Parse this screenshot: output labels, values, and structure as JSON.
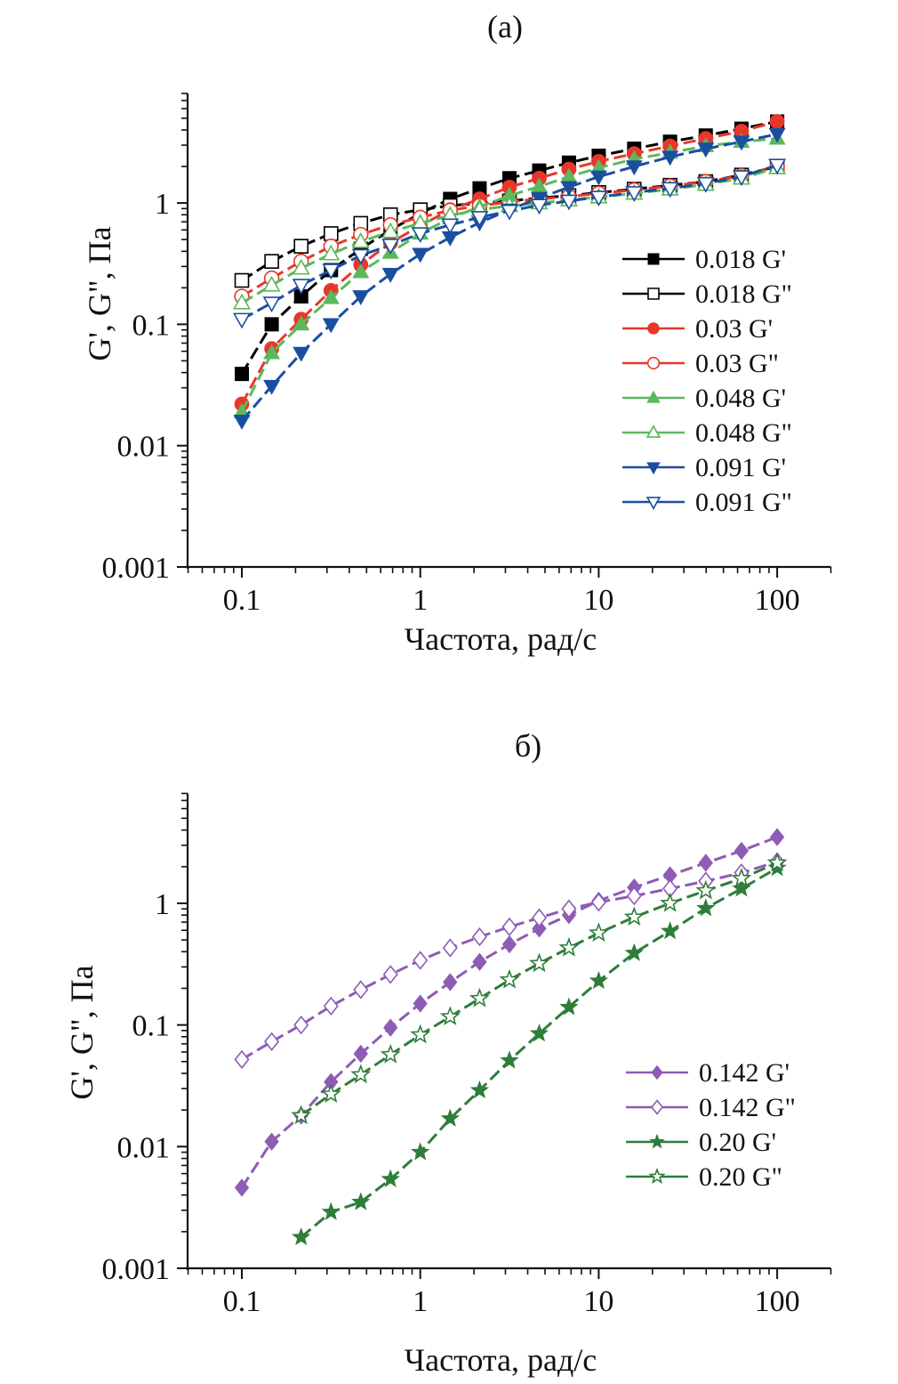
{
  "chart_data": [
    {
      "type": "line",
      "title": "(a)",
      "xlabel": "Частота, рад/с",
      "ylabel": "G', G\", Па",
      "xscale": "log",
      "yscale": "log",
      "xlim": [
        0.05,
        200
      ],
      "ylim": [
        0.001,
        8
      ],
      "xticks": [
        {
          "v": 0.1,
          "label": "0.1"
        },
        {
          "v": 1,
          "label": "1"
        },
        {
          "v": 10,
          "label": "10"
        },
        {
          "v": 100,
          "label": "100"
        }
      ],
      "yticks": [
        {
          "v": 0.001,
          "label": "0.001"
        },
        {
          "v": 0.01,
          "label": "0.01"
        },
        {
          "v": 0.1,
          "label": "0.1"
        },
        {
          "v": 1,
          "label": "1"
        }
      ],
      "grid": false,
      "legend_position": "right",
      "series": [
        {
          "name": "0.018 G'",
          "color": "#000000",
          "marker": "square",
          "filled": true,
          "x": [
            0.1,
            0.147,
            0.215,
            0.316,
            0.464,
            0.681,
            1,
            1.47,
            2.15,
            3.16,
            4.64,
            6.81,
            10,
            15.8,
            25.1,
            39.8,
            63.1,
            100
          ],
          "y": [
            0.039,
            0.1,
            0.17,
            0.28,
            0.42,
            0.6,
            0.82,
            1.08,
            1.32,
            1.6,
            1.85,
            2.15,
            2.45,
            2.8,
            3.2,
            3.6,
            4.1,
            4.7
          ]
        },
        {
          "name": "0.018 G\"",
          "color": "#000000",
          "marker": "square",
          "filled": false,
          "x": [
            0.1,
            0.147,
            0.215,
            0.316,
            0.464,
            0.681,
            1,
            1.47,
            2.15,
            3.16,
            4.64,
            6.81,
            10,
            15.8,
            25.1,
            39.8,
            63.1,
            100
          ],
          "y": [
            0.23,
            0.33,
            0.44,
            0.56,
            0.68,
            0.8,
            0.88,
            0.95,
            1.0,
            1.04,
            1.1,
            1.15,
            1.22,
            1.3,
            1.4,
            1.5,
            1.7,
            2.0
          ]
        },
        {
          "name": "0.03 G'",
          "color": "#e8372a",
          "marker": "circle",
          "filled": true,
          "x": [
            0.1,
            0.147,
            0.215,
            0.316,
            0.464,
            0.681,
            1,
            1.47,
            2.15,
            3.16,
            4.64,
            6.81,
            10,
            15.8,
            25.1,
            39.8,
            63.1,
            100
          ],
          "y": [
            0.022,
            0.063,
            0.11,
            0.19,
            0.31,
            0.47,
            0.65,
            0.88,
            1.08,
            1.35,
            1.6,
            1.9,
            2.2,
            2.55,
            2.95,
            3.4,
            3.9,
            4.7
          ]
        },
        {
          "name": "0.03 G\"",
          "color": "#e8372a",
          "marker": "circle",
          "filled": false,
          "x": [
            0.1,
            0.147,
            0.215,
            0.316,
            0.464,
            0.681,
            1,
            1.47,
            2.15,
            3.16,
            4.64,
            6.81,
            10,
            15.8,
            25.1,
            39.8,
            63.1,
            100
          ],
          "y": [
            0.17,
            0.24,
            0.33,
            0.44,
            0.55,
            0.66,
            0.76,
            0.87,
            0.95,
            1.02,
            1.08,
            1.13,
            1.2,
            1.28,
            1.38,
            1.5,
            1.68,
            2.0
          ]
        },
        {
          "name": "0.048 G'",
          "color": "#5cb85c",
          "marker": "triangle-up",
          "filled": true,
          "x": [
            0.1,
            0.147,
            0.215,
            0.316,
            0.464,
            0.681,
            1,
            1.47,
            2.15,
            3.16,
            4.64,
            6.81,
            10,
            15.8,
            25.1,
            39.8,
            63.1,
            100
          ],
          "y": [
            0.019,
            0.058,
            0.1,
            0.165,
            0.27,
            0.39,
            0.56,
            0.75,
            0.93,
            1.15,
            1.37,
            1.65,
            1.95,
            2.3,
            2.6,
            2.95,
            3.2,
            3.4
          ]
        },
        {
          "name": "0.048 G\"",
          "color": "#5cb85c",
          "marker": "triangle-up",
          "filled": false,
          "x": [
            0.1,
            0.147,
            0.215,
            0.316,
            0.464,
            0.681,
            1,
            1.47,
            2.15,
            3.16,
            4.64,
            6.81,
            10,
            15.8,
            25.1,
            39.8,
            63.1,
            100
          ],
          "y": [
            0.15,
            0.21,
            0.29,
            0.38,
            0.48,
            0.58,
            0.68,
            0.79,
            0.88,
            0.95,
            1.0,
            1.06,
            1.12,
            1.2,
            1.3,
            1.42,
            1.6,
            1.95
          ]
        },
        {
          "name": "0.091 G'",
          "color": "#1a4fa0",
          "marker": "triangle-down",
          "filled": true,
          "x": [
            0.1,
            0.147,
            0.215,
            0.316,
            0.464,
            0.681,
            1,
            1.47,
            2.15,
            3.16,
            4.64,
            6.81,
            10,
            15.8,
            25.1,
            39.8,
            63.1,
            100
          ],
          "y": [
            0.016,
            0.031,
            0.058,
            0.1,
            0.17,
            0.26,
            0.38,
            0.52,
            0.69,
            0.88,
            1.1,
            1.35,
            1.65,
            2.0,
            2.4,
            2.8,
            3.2,
            3.7
          ]
        },
        {
          "name": "0.091 G\"",
          "color": "#1a4fa0",
          "marker": "triangle-down",
          "filled": false,
          "x": [
            0.1,
            0.147,
            0.215,
            0.316,
            0.464,
            0.681,
            1,
            1.47,
            2.15,
            3.16,
            4.64,
            6.81,
            10,
            15.8,
            25.1,
            39.8,
            63.1,
            100
          ],
          "y": [
            0.11,
            0.15,
            0.21,
            0.28,
            0.37,
            0.45,
            0.56,
            0.66,
            0.76,
            0.86,
            0.96,
            1.04,
            1.12,
            1.22,
            1.32,
            1.45,
            1.65,
            2.05
          ]
        }
      ]
    },
    {
      "type": "line",
      "title": "б)",
      "xlabel": "Частота, рад/с",
      "ylabel": "G', G\", Па",
      "xscale": "log",
      "yscale": "log",
      "xlim": [
        0.05,
        200
      ],
      "ylim": [
        0.001,
        8
      ],
      "xticks": [
        {
          "v": 0.1,
          "label": "0.1"
        },
        {
          "v": 1,
          "label": "1"
        },
        {
          "v": 10,
          "label": "10"
        },
        {
          "v": 100,
          "label": "100"
        }
      ],
      "yticks": [
        {
          "v": 0.001,
          "label": "0.001"
        },
        {
          "v": 0.01,
          "label": "0.01"
        },
        {
          "v": 0.1,
          "label": "0.1"
        },
        {
          "v": 1,
          "label": "1"
        }
      ],
      "grid": false,
      "legend_position": "bottom-right",
      "series": [
        {
          "name": "0.142 G'",
          "color": "#8e5bb5",
          "marker": "diamond",
          "filled": true,
          "x": [
            0.1,
            0.147,
            0.215,
            0.316,
            0.464,
            0.681,
            1,
            1.47,
            2.15,
            3.16,
            4.64,
            6.81,
            10,
            15.8,
            25.1,
            39.8,
            63.1,
            100
          ],
          "y": [
            0.0046,
            0.011,
            0.018,
            0.034,
            0.058,
            0.095,
            0.15,
            0.225,
            0.33,
            0.46,
            0.62,
            0.8,
            1.05,
            1.35,
            1.7,
            2.15,
            2.7,
            3.5
          ]
        },
        {
          "name": "0.142 G\"",
          "color": "#8e5bb5",
          "marker": "diamond",
          "filled": false,
          "x": [
            0.1,
            0.147,
            0.215,
            0.316,
            0.464,
            0.681,
            1,
            1.47,
            2.15,
            3.16,
            4.64,
            6.81,
            10,
            15.8,
            25.1,
            39.8,
            63.1,
            100
          ],
          "y": [
            0.052,
            0.073,
            0.1,
            0.143,
            0.195,
            0.26,
            0.34,
            0.43,
            0.53,
            0.64,
            0.76,
            0.9,
            1.02,
            1.15,
            1.32,
            1.52,
            1.78,
            2.2
          ]
        },
        {
          "name": "0.20 G'",
          "color": "#2e7d3a",
          "marker": "star",
          "filled": true,
          "x": [
            0.215,
            0.316,
            0.464,
            0.681,
            1,
            1.47,
            2.15,
            3.16,
            4.64,
            6.81,
            10,
            15.8,
            25.1,
            39.8,
            63.1,
            100
          ],
          "y": [
            0.0018,
            0.0029,
            0.0035,
            0.0054,
            0.009,
            0.017,
            0.029,
            0.051,
            0.085,
            0.14,
            0.23,
            0.39,
            0.59,
            0.91,
            1.32,
            1.95
          ]
        },
        {
          "name": "0.20 G\"",
          "color": "#2e7d3a",
          "marker": "star",
          "filled": false,
          "x": [
            0.215,
            0.316,
            0.464,
            0.681,
            1,
            1.47,
            2.15,
            3.16,
            4.64,
            6.81,
            10,
            15.8,
            25.1,
            39.8,
            63.1,
            100
          ],
          "y": [
            0.018,
            0.027,
            0.039,
            0.057,
            0.083,
            0.117,
            0.165,
            0.235,
            0.32,
            0.43,
            0.57,
            0.77,
            1.0,
            1.27,
            1.6,
            2.15
          ]
        }
      ]
    }
  ]
}
